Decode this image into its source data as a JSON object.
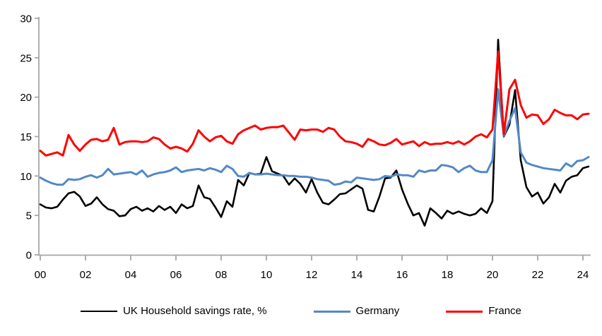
{
  "chart_data": {
    "type": "line",
    "title": "",
    "xlabel": "",
    "ylabel": "",
    "grid": false,
    "legend_position": "bottom",
    "axis_color": "#a6a6a6",
    "ylim": [
      0,
      30
    ],
    "y_ticks": [
      0,
      5,
      10,
      15,
      20,
      25,
      30
    ],
    "x_ticks": [
      {
        "label": "00",
        "year": 2000
      },
      {
        "label": "02",
        "year": 2002
      },
      {
        "label": "04",
        "year": 2004
      },
      {
        "label": "06",
        "year": 2006
      },
      {
        "label": "08",
        "year": 2008
      },
      {
        "label": "10",
        "year": 2010
      },
      {
        "label": "12",
        "year": 2012
      },
      {
        "label": "14",
        "year": 2014
      },
      {
        "label": "16",
        "year": 2016
      },
      {
        "label": "18",
        "year": 2018
      },
      {
        "label": "20",
        "year": 2020
      },
      {
        "label": "22",
        "year": 2022
      },
      {
        "label": "24",
        "year": 2024
      }
    ],
    "x_start_year": 2000,
    "x_step_years": 0.25,
    "series": [
      {
        "name": "UK Household savings rate, %",
        "color": "#000000",
        "line_width": 2.6,
        "values": [
          6.4,
          6.0,
          5.9,
          6.1,
          7.0,
          7.8,
          8.0,
          7.4,
          6.2,
          6.5,
          7.3,
          6.4,
          5.8,
          5.6,
          4.9,
          5.0,
          5.8,
          6.1,
          5.6,
          5.9,
          5.5,
          6.2,
          5.7,
          6.1,
          5.3,
          6.4,
          5.9,
          6.2,
          8.8,
          7.3,
          7.1,
          6.0,
          4.8,
          6.8,
          6.1,
          9.5,
          8.8,
          10.4,
          10.2,
          10.3,
          12.4,
          10.6,
          10.3,
          10.0,
          8.9,
          9.7,
          9.0,
          7.9,
          9.6,
          7.9,
          6.6,
          6.4,
          7.0,
          7.7,
          7.8,
          8.3,
          8.8,
          8.4,
          5.7,
          5.5,
          7.4,
          9.7,
          9.8,
          10.7,
          8.3,
          6.5,
          5.0,
          5.3,
          3.7,
          5.9,
          5.3,
          4.6,
          5.6,
          5.2,
          5.5,
          5.2,
          5.0,
          5.2,
          5.9,
          5.3,
          6.8,
          27.3,
          15.0,
          16.5,
          20.9,
          12.0,
          8.6,
          7.4,
          7.9,
          6.5,
          7.3,
          9.0,
          7.9,
          9.4,
          9.9,
          10.1,
          11.0,
          11.2
        ]
      },
      {
        "name": "Germany",
        "color": "#5488c7",
        "line_width": 3,
        "values": [
          9.8,
          9.4,
          9.1,
          8.9,
          8.9,
          9.6,
          9.5,
          9.6,
          9.9,
          10.1,
          9.8,
          10.1,
          10.9,
          10.2,
          10.3,
          10.4,
          10.5,
          10.2,
          10.7,
          9.9,
          10.2,
          10.4,
          10.5,
          10.7,
          11.1,
          10.5,
          10.7,
          10.8,
          10.9,
          10.7,
          11.0,
          10.8,
          10.5,
          11.3,
          10.9,
          10.0,
          9.9,
          10.4,
          10.2,
          10.2,
          10.3,
          10.2,
          10.1,
          10.1,
          10.0,
          10.0,
          9.9,
          9.9,
          9.8,
          9.6,
          9.5,
          9.4,
          8.9,
          9.0,
          9.3,
          9.2,
          9.8,
          9.7,
          9.6,
          9.5,
          9.6,
          10.0,
          9.9,
          10.2,
          10.1,
          10.1,
          9.9,
          10.7,
          10.5,
          10.7,
          10.7,
          11.4,
          11.3,
          11.1,
          10.5,
          11.0,
          11.3,
          10.7,
          10.5,
          10.5,
          12.0,
          21.0,
          15.1,
          17.0,
          18.6,
          13.0,
          11.7,
          11.4,
          11.2,
          11.0,
          10.9,
          10.8,
          10.7,
          11.6,
          11.2,
          11.9,
          12.0,
          12.4
        ]
      },
      {
        "name": "France",
        "color": "#fe0000",
        "line_width": 3,
        "values": [
          13.2,
          12.6,
          12.8,
          13.0,
          12.6,
          15.2,
          14.0,
          13.2,
          14.0,
          14.6,
          14.7,
          14.4,
          14.6,
          16.1,
          14.0,
          14.3,
          14.4,
          14.4,
          14.3,
          14.4,
          14.9,
          14.7,
          14.0,
          13.5,
          13.7,
          13.5,
          13.1,
          14.1,
          15.8,
          15.0,
          14.4,
          14.9,
          15.1,
          14.4,
          14.1,
          15.3,
          15.8,
          16.1,
          16.4,
          15.9,
          16.1,
          16.2,
          16.2,
          16.4,
          15.5,
          14.6,
          15.9,
          15.8,
          15.9,
          15.9,
          15.6,
          16.1,
          15.9,
          15.0,
          14.4,
          14.3,
          14.1,
          13.7,
          14.7,
          14.4,
          14.0,
          13.9,
          14.2,
          14.7,
          14.0,
          14.2,
          14.4,
          13.8,
          14.3,
          14.0,
          14.1,
          14.1,
          14.3,
          14.1,
          14.4,
          14.0,
          14.4,
          15.0,
          15.3,
          14.9,
          15.9,
          25.8,
          15.3,
          21.0,
          22.2,
          19.0,
          17.4,
          17.8,
          17.7,
          16.6,
          17.2,
          18.4,
          18.0,
          17.7,
          17.7,
          17.2,
          17.8,
          17.9
        ]
      }
    ]
  }
}
